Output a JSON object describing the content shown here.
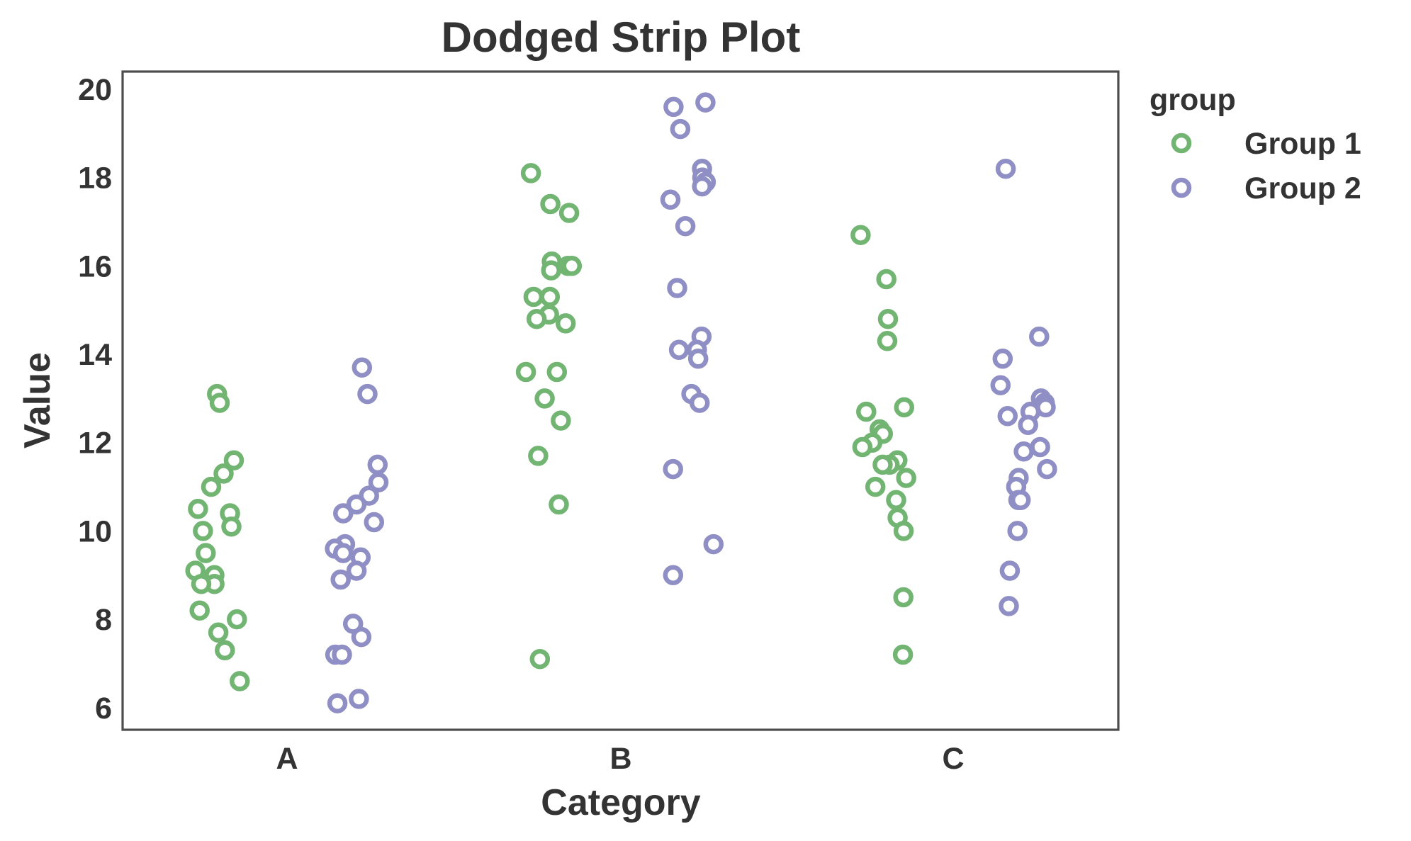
{
  "chart_data": {
    "type": "scatter",
    "subtype": "dodged-strip",
    "title": "Dodged Strip Plot",
    "xlabel": "Category",
    "ylabel": "Value",
    "categories": [
      "A",
      "B",
      "C"
    ],
    "ylim": [
      5.5,
      20.4
    ],
    "yticks": [
      6,
      8,
      10,
      12,
      14,
      16,
      18,
      20
    ],
    "grid": false,
    "legend": {
      "title": "group",
      "placement": "outside-top-right"
    },
    "series": [
      {
        "name": "Group 1",
        "color": "#72b573",
        "points": [
          {
            "category": "A",
            "values": [
              13.1,
              12.9,
              11.3,
              11.6,
              11.0,
              10.5,
              10.4,
              10.1,
              10.0,
              9.5,
              9.1,
              9.0,
              8.8,
              8.8,
              8.2,
              8.0,
              7.7,
              7.3,
              6.6
            ]
          },
          {
            "category": "B",
            "values": [
              18.1,
              17.4,
              17.2,
              16.1,
              16.0,
              16.0,
              15.9,
              15.3,
              15.3,
              14.9,
              14.8,
              14.7,
              13.6,
              13.6,
              13.0,
              12.5,
              11.7,
              10.6,
              7.1
            ]
          },
          {
            "category": "C",
            "values": [
              16.7,
              15.7,
              14.8,
              14.3,
              12.8,
              12.7,
              12.3,
              12.2,
              12.0,
              11.9,
              11.6,
              11.5,
              11.5,
              11.2,
              11.0,
              10.7,
              10.3,
              10.0,
              8.5,
              7.2
            ]
          }
        ]
      },
      {
        "name": "Group 2",
        "color": "#8f8fc5",
        "points": [
          {
            "category": "A",
            "values": [
              13.7,
              13.1,
              11.5,
              11.1,
              10.8,
              10.6,
              10.4,
              10.2,
              9.7,
              9.6,
              9.5,
              9.4,
              9.1,
              8.9,
              7.9,
              7.6,
              7.2,
              7.2,
              6.2,
              6.1
            ]
          },
          {
            "category": "B",
            "values": [
              19.7,
              19.6,
              19.1,
              18.2,
              18.0,
              17.9,
              17.8,
              17.5,
              16.9,
              15.5,
              14.4,
              14.1,
              14.1,
              13.9,
              13.1,
              12.9,
              11.4,
              9.7,
              9.0
            ]
          },
          {
            "category": "C",
            "values": [
              18.2,
              14.4,
              13.9,
              13.3,
              13.0,
              12.9,
              12.8,
              12.7,
              12.6,
              12.4,
              11.9,
              11.8,
              11.4,
              11.2,
              11.0,
              10.7,
              10.7,
              10.0,
              9.1,
              8.3
            ]
          }
        ]
      }
    ]
  }
}
